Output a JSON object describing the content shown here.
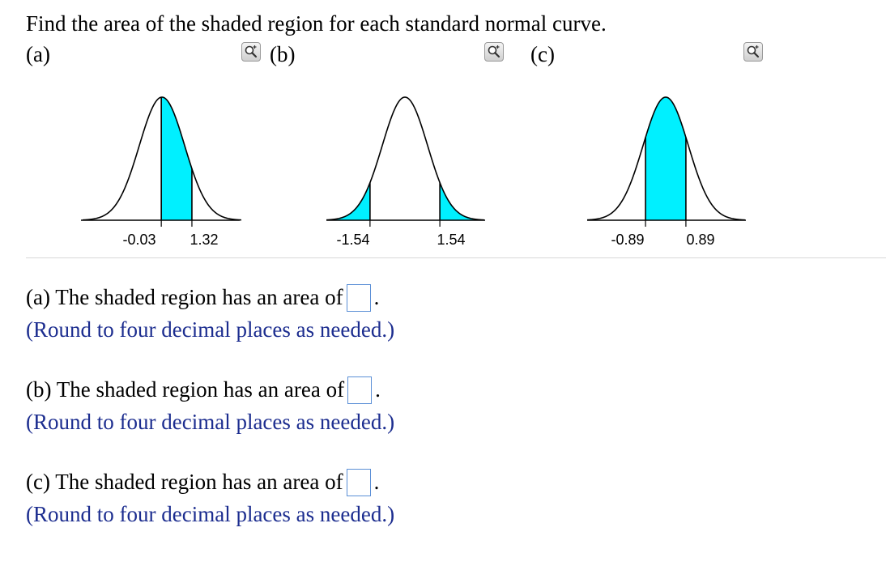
{
  "question": "Find the area of the shaded region for each standard normal curve.",
  "parts": [
    {
      "label": "(a)",
      "graph": {
        "z_left": -0.03,
        "z_right": 1.32,
        "shade": "between",
        "tick_labels": [
          "-0.03",
          "1.32"
        ]
      },
      "prompt": "(a) The shaded region has an area of",
      "period": ".",
      "hint": "(Round to four decimal places as needed.)",
      "answer_value": ""
    },
    {
      "label": "(b)",
      "graph": {
        "z_left": -1.54,
        "z_right": 1.54,
        "shade": "tails",
        "tick_labels": [
          "-1.54",
          "1.54"
        ]
      },
      "prompt": "(b) The shaded region has an area of",
      "period": ".",
      "hint": "(Round to four decimal places as needed.)",
      "answer_value": ""
    },
    {
      "label": "(c)",
      "graph": {
        "z_left": -0.89,
        "z_right": 0.89,
        "shade": "between",
        "tick_labels": [
          "-0.89",
          "0.89"
        ]
      },
      "prompt": "(c) The shaded region has an area of",
      "period": ".",
      "hint": "(Round to four decimal places as needed.)",
      "answer_value": ""
    }
  ],
  "colors": {
    "shade": "#00f0ff",
    "curve": "#000000",
    "hint_text": "#1c2d8f",
    "answer_border": "#5b8fd6"
  },
  "icons": {
    "zoom": "zoom-in-magnifier-icon"
  }
}
